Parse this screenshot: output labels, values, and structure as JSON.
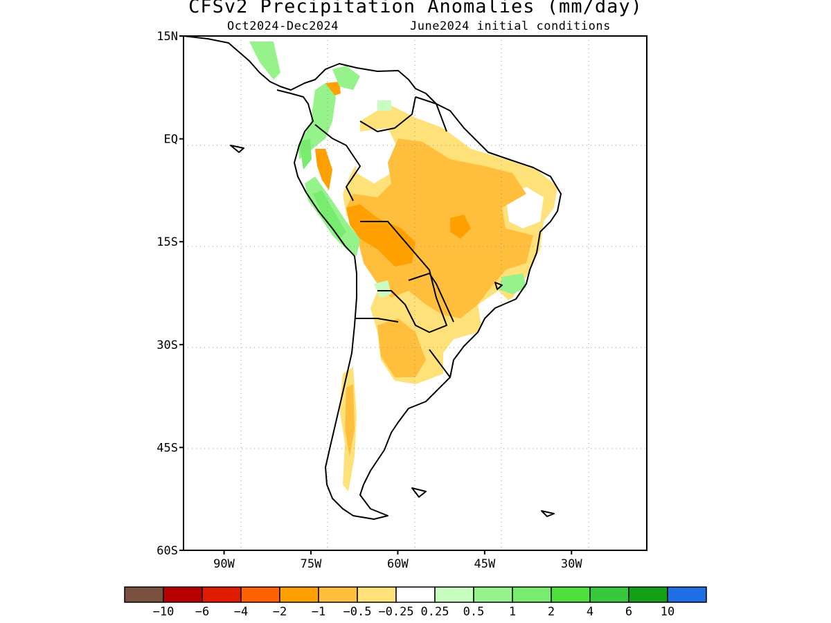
{
  "title": "CFSv2 Precipitation Anomalies (mm/day)",
  "subtitle_left": "Oct2024-Dec2024",
  "subtitle_right": "June2024 initial conditions",
  "map": {
    "lon_range": [
      -97,
      -17
    ],
    "lat_range": [
      -60,
      15
    ],
    "lat_ticks": [
      {
        "value": 15,
        "label": "15N"
      },
      {
        "value": 0,
        "label": "EQ"
      },
      {
        "value": -15,
        "label": "15S"
      },
      {
        "value": -30,
        "label": "30S"
      },
      {
        "value": -45,
        "label": "45S"
      },
      {
        "value": -60,
        "label": "60S"
      }
    ],
    "lon_ticks": [
      {
        "value": -90,
        "label": "90W"
      },
      {
        "value": -75,
        "label": "75W"
      },
      {
        "value": -60,
        "label": "60W"
      },
      {
        "value": -45,
        "label": "45W"
      },
      {
        "value": -30,
        "label": "30W"
      }
    ],
    "grid": "dotted"
  },
  "colorbar": {
    "colors": [
      "#7a5040",
      "#b80000",
      "#e01b00",
      "#ff6200",
      "#ffa000",
      "#ffbe3c",
      "#ffe17a",
      "#ffffff",
      "#c8fcc0",
      "#96f28a",
      "#78ec6e",
      "#50e03c",
      "#37c83c",
      "#14a014",
      "#1e6ee6"
    ],
    "labels": [
      "-10",
      "-6",
      "-4",
      "-2",
      "-1",
      "-0.5",
      "-0.25",
      "0.25",
      "0.5",
      "1",
      "2",
      "4",
      "6",
      "10"
    ]
  }
}
